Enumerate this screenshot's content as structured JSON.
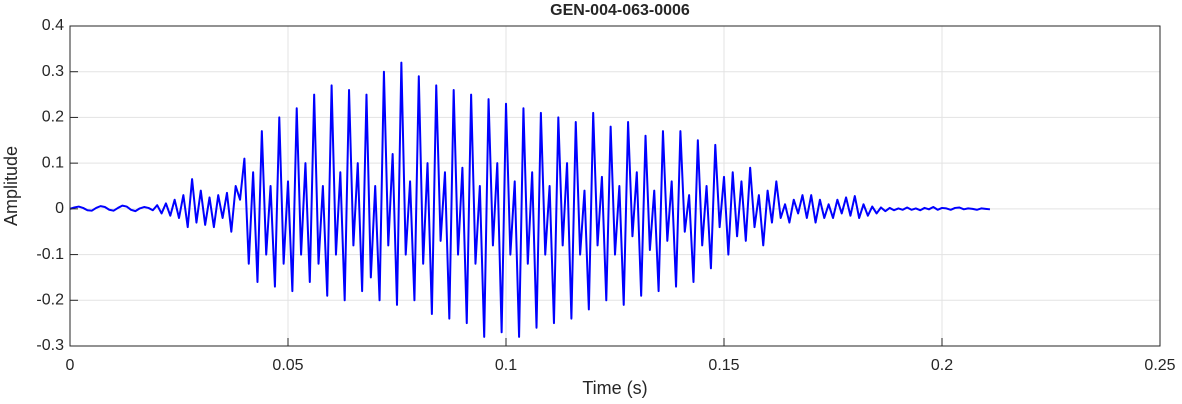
{
  "chart_data": {
    "type": "line",
    "title": "GEN-004-063-0006",
    "xlabel": "Time (s)",
    "ylabel": "Amplitude",
    "xlim": [
      0,
      0.25
    ],
    "xticks": [
      0,
      0.05,
      0.1,
      0.15,
      0.2,
      0.25
    ],
    "ylim": [
      -0.3,
      0.4
    ],
    "yticks": [
      -0.3,
      -0.2,
      -0.1,
      0,
      0.1,
      0.2,
      0.3,
      0.4
    ],
    "grid": true,
    "x": [
      0,
      0.001,
      0.002,
      0.003,
      0.004,
      0.005,
      0.006,
      0.007,
      0.008,
      0.009,
      0.01,
      0.011,
      0.012,
      0.013,
      0.014,
      0.015,
      0.016,
      0.017,
      0.018,
      0.019,
      0.02,
      0.021,
      0.022,
      0.023,
      0.024,
      0.025,
      0.026,
      0.027,
      0.028,
      0.029,
      0.03,
      0.031,
      0.032,
      0.033,
      0.034,
      0.035,
      0.036,
      0.037,
      0.038,
      0.039,
      0.04,
      0.041,
      0.042,
      0.043,
      0.044,
      0.045,
      0.046,
      0.047,
      0.048,
      0.049,
      0.05,
      0.051,
      0.052,
      0.053,
      0.054,
      0.055,
      0.056,
      0.057,
      0.058,
      0.059,
      0.06,
      0.061,
      0.062,
      0.063,
      0.064,
      0.065,
      0.066,
      0.067,
      0.068,
      0.069,
      0.07,
      0.071,
      0.072,
      0.073,
      0.074,
      0.075,
      0.076,
      0.077,
      0.078,
      0.079,
      0.08,
      0.081,
      0.082,
      0.083,
      0.084,
      0.085,
      0.086,
      0.087,
      0.088,
      0.089,
      0.09,
      0.091,
      0.092,
      0.093,
      0.094,
      0.095,
      0.096,
      0.097,
      0.098,
      0.099,
      0.1,
      0.101,
      0.102,
      0.103,
      0.104,
      0.105,
      0.106,
      0.107,
      0.108,
      0.109,
      0.11,
      0.111,
      0.112,
      0.113,
      0.114,
      0.115,
      0.116,
      0.117,
      0.118,
      0.119,
      0.12,
      0.121,
      0.122,
      0.123,
      0.124,
      0.125,
      0.126,
      0.127,
      0.128,
      0.129,
      0.13,
      0.131,
      0.132,
      0.133,
      0.134,
      0.135,
      0.136,
      0.137,
      0.138,
      0.139,
      0.14,
      0.141,
      0.142,
      0.143,
      0.144,
      0.145,
      0.146,
      0.147,
      0.148,
      0.149,
      0.15,
      0.151,
      0.152,
      0.153,
      0.154,
      0.155,
      0.156,
      0.157,
      0.158,
      0.159,
      0.16,
      0.161,
      0.162,
      0.163,
      0.164,
      0.165,
      0.166,
      0.167,
      0.168,
      0.169,
      0.17,
      0.171,
      0.172,
      0.173,
      0.174,
      0.175,
      0.176,
      0.177,
      0.178,
      0.179,
      0.18,
      0.181,
      0.182,
      0.183,
      0.184,
      0.185,
      0.186,
      0.187,
      0.188,
      0.189,
      0.19,
      0.191,
      0.192,
      0.193,
      0.194,
      0.195,
      0.196,
      0.197,
      0.198,
      0.199,
      0.2,
      0.201,
      0.202,
      0.203,
      0.204,
      0.205,
      0.206,
      0.207,
      0.208,
      0.209,
      0.21,
      0.211
    ],
    "series": [
      {
        "color": "#0000ff",
        "values": [
          0,
          0.003,
          0.005,
          0.002,
          -0.003,
          -0.004,
          0.002,
          0.006,
          0.004,
          -0.002,
          -0.004,
          0.002,
          0.007,
          0.005,
          -0.002,
          -0.005,
          0.001,
          0.004,
          0.002,
          -0.003,
          0.008,
          -0.01,
          0.012,
          -0.015,
          0.02,
          -0.02,
          0.03,
          -0.04,
          0.065,
          -0.03,
          0.04,
          -0.035,
          0.025,
          -0.04,
          0.03,
          -0.02,
          0.035,
          -0.05,
          0.05,
          0.02,
          0.11,
          -0.12,
          0.08,
          -0.16,
          0.17,
          -0.1,
          0.05,
          -0.17,
          0.2,
          -0.12,
          0.06,
          -0.18,
          0.22,
          -0.1,
          0.1,
          -0.16,
          0.25,
          -0.12,
          0.05,
          -0.19,
          0.27,
          -0.1,
          0.08,
          -0.2,
          0.26,
          -0.08,
          0.1,
          -0.18,
          0.25,
          -0.15,
          0.05,
          -0.2,
          0.3,
          -0.08,
          0.12,
          -0.21,
          0.32,
          -0.1,
          0.06,
          -0.2,
          0.29,
          -0.12,
          0.1,
          -0.23,
          0.27,
          -0.07,
          0.08,
          -0.24,
          0.26,
          -0.1,
          0.09,
          -0.25,
          0.25,
          -0.12,
          0.05,
          -0.28,
          0.24,
          -0.08,
          0.1,
          -0.27,
          0.23,
          -0.1,
          0.06,
          -0.28,
          0.22,
          -0.12,
          0.08,
          -0.26,
          0.21,
          -0.1,
          0.05,
          -0.25,
          0.2,
          -0.08,
          0.1,
          -0.24,
          0.19,
          -0.1,
          0.04,
          -0.22,
          0.21,
          -0.08,
          0.07,
          -0.2,
          0.18,
          -0.1,
          0.05,
          -0.21,
          0.19,
          -0.06,
          0.08,
          -0.19,
          0.16,
          -0.09,
          0.04,
          -0.18,
          0.17,
          -0.07,
          0.06,
          -0.17,
          0.17,
          -0.05,
          0.03,
          -0.16,
          0.15,
          -0.08,
          0.05,
          -0.13,
          0.14,
          -0.04,
          0.07,
          -0.1,
          0.08,
          -0.06,
          0.06,
          -0.07,
          0.09,
          -0.04,
          0.03,
          -0.08,
          0.04,
          -0.03,
          0.06,
          -0.02,
          0.01,
          -0.03,
          0.02,
          -0.01,
          0.03,
          -0.02,
          0.03,
          -0.03,
          0.02,
          -0.02,
          0.01,
          -0.02,
          0.02,
          -0.01,
          0.025,
          -0.015,
          0.028,
          -0.02,
          0.01,
          -0.015,
          0.005,
          -0.01,
          0.003,
          -0.005,
          0.002,
          -0.003,
          0.001,
          -0.002,
          0.003,
          -0.002,
          0.001,
          -0.003,
          0.002,
          -0.001,
          0.004,
          -0.002,
          0.002,
          0.001,
          -0.002,
          0.002,
          0.003,
          -0.001,
          0.001,
          0,
          -0.002,
          0.001,
          0,
          -0.001
        ]
      }
    ]
  }
}
